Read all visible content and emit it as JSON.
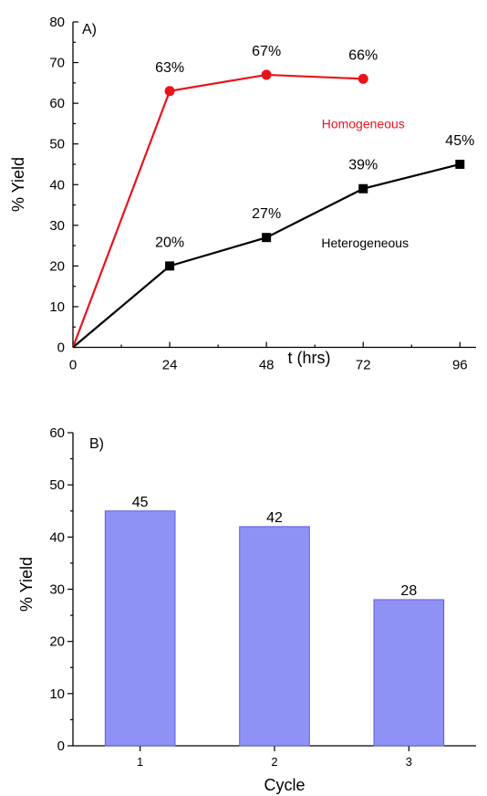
{
  "chart_data": [
    {
      "type": "line",
      "panel_label": "A)",
      "xlabel": "t (hrs)",
      "ylabel": "% Yield",
      "xlim": [
        0,
        100
      ],
      "ylim": [
        0,
        80
      ],
      "x_ticks": [
        0,
        24,
        48,
        72,
        96
      ],
      "y_ticks": [
        0,
        10,
        20,
        30,
        40,
        50,
        60,
        70,
        80
      ],
      "series": [
        {
          "name": "Homogeneous",
          "color": "#e8141b",
          "marker": "circle",
          "x": [
            0,
            24,
            48,
            72
          ],
          "y": [
            0,
            63,
            67,
            66
          ],
          "labels": [
            "",
            "63%",
            "67%",
            "66%"
          ]
        },
        {
          "name": "Heterogeneous",
          "color": "#000000",
          "marker": "square",
          "x": [
            0,
            24,
            48,
            72,
            96
          ],
          "y": [
            0,
            20,
            27,
            39,
            45
          ],
          "labels": [
            "",
            "20%",
            "27%",
            "39%",
            "45%"
          ]
        }
      ]
    },
    {
      "type": "bar",
      "panel_label": "B)",
      "xlabel": "Cycle",
      "ylabel": "% Yield",
      "categories": [
        "1",
        "2",
        "3"
      ],
      "values": [
        45,
        42,
        28
      ],
      "value_labels": [
        "45",
        "42",
        "28"
      ],
      "ylim": [
        0,
        60
      ],
      "y_ticks": [
        0,
        10,
        20,
        30,
        40,
        50,
        60
      ],
      "bar_color": "#8f91f5",
      "bar_edge_color": "#5a5ce0"
    }
  ]
}
